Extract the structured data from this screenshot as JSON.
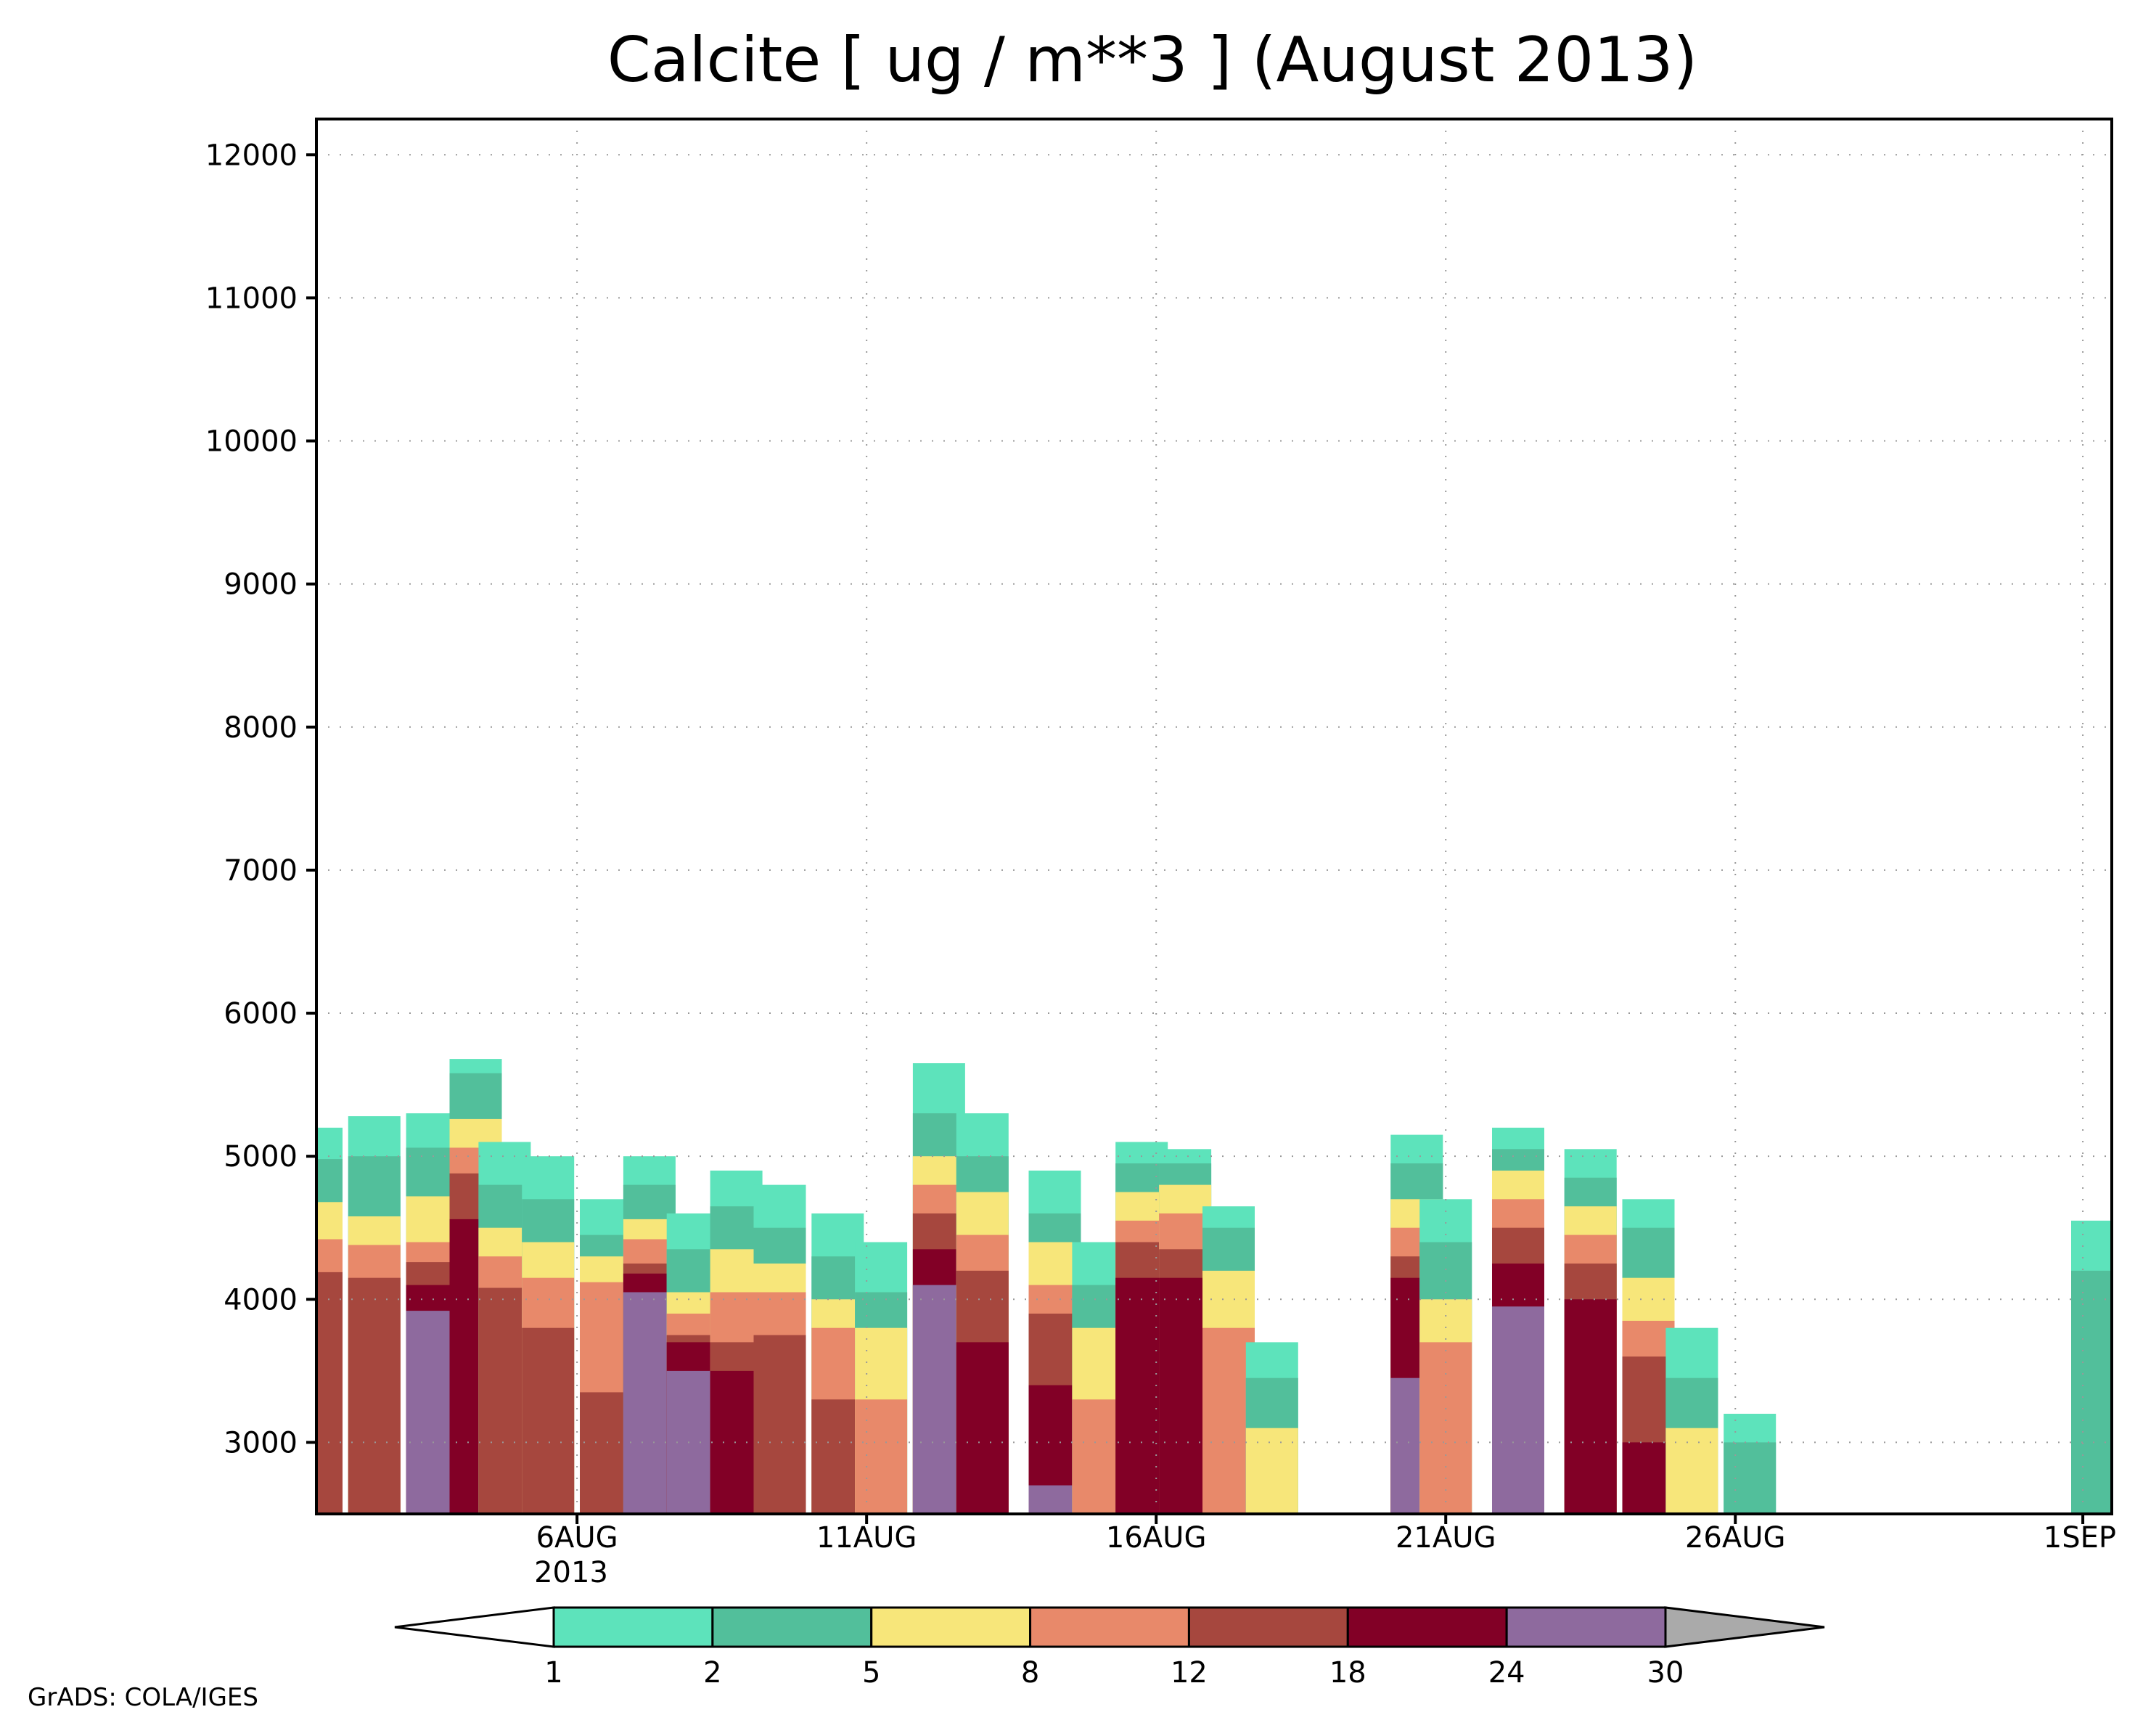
{
  "chart_data": {
    "type": "heatmap",
    "title": "Calcite [ ug / m**3 ] (August 2013)",
    "xlabel": "",
    "ylabel": "",
    "x_tick_labels": [
      "6AUG",
      "11AUG",
      "16AUG",
      "21AUG",
      "26AUG",
      "1SEP"
    ],
    "x_tick_values": [
      "2013-08-06",
      "2013-08-11",
      "2013-08-16",
      "2013-08-21",
      "2013-08-26",
      "2013-09-01"
    ],
    "x_sublabel": "2013",
    "xlim": [
      "2013-08-01 12:00",
      "2013-09-01 12:00"
    ],
    "y_ticks": [
      3000,
      4000,
      5000,
      6000,
      7000,
      8000,
      9000,
      10000,
      11000,
      12000
    ],
    "ylim": [
      2500,
      12250
    ],
    "grid": true,
    "colorbar": {
      "position": "bottom",
      "levels": [
        1,
        2,
        5,
        8,
        12,
        18,
        24,
        30
      ],
      "colors": [
        "#ffffff",
        "#5de3bb",
        "#52bf9b",
        "#f7e67a",
        "#e8896a",
        "#a6473e",
        "#820026",
        "#8e6a9e",
        "#aaaaaa"
      ]
    },
    "columns": [
      {
        "t": "2013-08-01 12:00",
        "tops": [
          5200,
          4980,
          4680,
          4420,
          4190,
          null,
          null
        ]
      },
      {
        "t": "2013-08-02 12:00",
        "tops": [
          5280,
          5000,
          4580,
          4380,
          4150,
          null,
          null
        ]
      },
      {
        "t": "2013-08-03 12:00",
        "tops": [
          5300,
          5060,
          4720,
          4400,
          4260,
          4100,
          3920
        ]
      },
      {
        "t": "2013-08-04 06:00",
        "tops": [
          5680,
          5580,
          5260,
          5060,
          4880,
          4560,
          null
        ]
      },
      {
        "t": "2013-08-04 18:00",
        "tops": [
          5100,
          4800,
          4500,
          4300,
          4080,
          null,
          null
        ]
      },
      {
        "t": "2013-08-05 12:00",
        "tops": [
          5000,
          4700,
          4400,
          4150,
          3800,
          null,
          null
        ]
      },
      {
        "t": "2013-08-06 12:00",
        "tops": [
          4700,
          4450,
          4300,
          4120,
          3350,
          null,
          null
        ]
      },
      {
        "t": "2013-08-07 06:00",
        "tops": [
          5000,
          4800,
          4560,
          4420,
          4250,
          4180,
          4050
        ]
      },
      {
        "t": "2013-08-08 00:00",
        "tops": [
          4600,
          4350,
          4050,
          3900,
          3750,
          3700,
          3500
        ]
      },
      {
        "t": "2013-08-08 18:00",
        "tops": [
          4900,
          4650,
          4350,
          4050,
          3700,
          3500,
          null
        ]
      },
      {
        "t": "2013-08-09 12:00",
        "tops": [
          4800,
          4500,
          4250,
          4050,
          3750,
          null,
          null
        ]
      },
      {
        "t": "2013-08-10 12:00",
        "tops": [
          4600,
          4300,
          4000,
          3800,
          3300,
          null,
          null
        ]
      },
      {
        "t": "2013-08-11 06:00",
        "tops": [
          4400,
          4050,
          3800,
          3300,
          null,
          null,
          null
        ]
      },
      {
        "t": "2013-08-12 06:00",
        "tops": [
          5650,
          5300,
          5000,
          4800,
          4600,
          4350,
          4100
        ]
      },
      {
        "t": "2013-08-13 00:00",
        "tops": [
          5300,
          5000,
          4750,
          4450,
          4200,
          3700,
          null
        ]
      },
      {
        "t": "2013-08-14 06:00",
        "tops": [
          4900,
          4600,
          4400,
          4100,
          3900,
          3400,
          2700
        ]
      },
      {
        "t": "2013-08-15 00:00",
        "tops": [
          4400,
          4100,
          3800,
          3300,
          null,
          null,
          null
        ]
      },
      {
        "t": "2013-08-15 18:00",
        "tops": [
          5100,
          4950,
          4750,
          4550,
          4400,
          4150,
          null
        ]
      },
      {
        "t": "2013-08-16 12:00",
        "tops": [
          5050,
          4950,
          4800,
          4600,
          4350,
          4150,
          null
        ]
      },
      {
        "t": "2013-08-17 06:00",
        "tops": [
          4650,
          4500,
          4200,
          3800,
          null,
          null,
          null
        ]
      },
      {
        "t": "2013-08-18 00:00",
        "tops": [
          3700,
          3450,
          3100,
          null,
          null,
          null,
          null
        ]
      },
      {
        "t": "2013-08-20 12:00",
        "tops": [
          5150,
          4950,
          4700,
          4500,
          4300,
          4150,
          3450
        ]
      },
      {
        "t": "2013-08-21 00:00",
        "tops": [
          4700,
          4400,
          4000,
          3700,
          null,
          null,
          null
        ]
      },
      {
        "t": "2013-08-22 06:00",
        "tops": [
          5200,
          5050,
          4900,
          4700,
          4500,
          4250,
          3950
        ]
      },
      {
        "t": "2013-08-23 12:00",
        "tops": [
          5050,
          4850,
          4650,
          4450,
          4250,
          4000,
          null
        ]
      },
      {
        "t": "2013-08-24 12:00",
        "tops": [
          4700,
          4500,
          4150,
          3850,
          3600,
          3000,
          null
        ]
      },
      {
        "t": "2013-08-25 06:00",
        "tops": [
          3800,
          3450,
          3100,
          null,
          null,
          null,
          null
        ]
      },
      {
        "t": "2013-08-26 06:00",
        "tops": [
          3200,
          3000,
          null,
          null,
          null,
          null,
          null
        ]
      },
      {
        "t": "2013-09-01 06:00",
        "tops": [
          4550,
          4200,
          null,
          null,
          null,
          null,
          null
        ]
      }
    ]
  },
  "footer": {
    "credit": "GrADS: COLA/IGES"
  }
}
